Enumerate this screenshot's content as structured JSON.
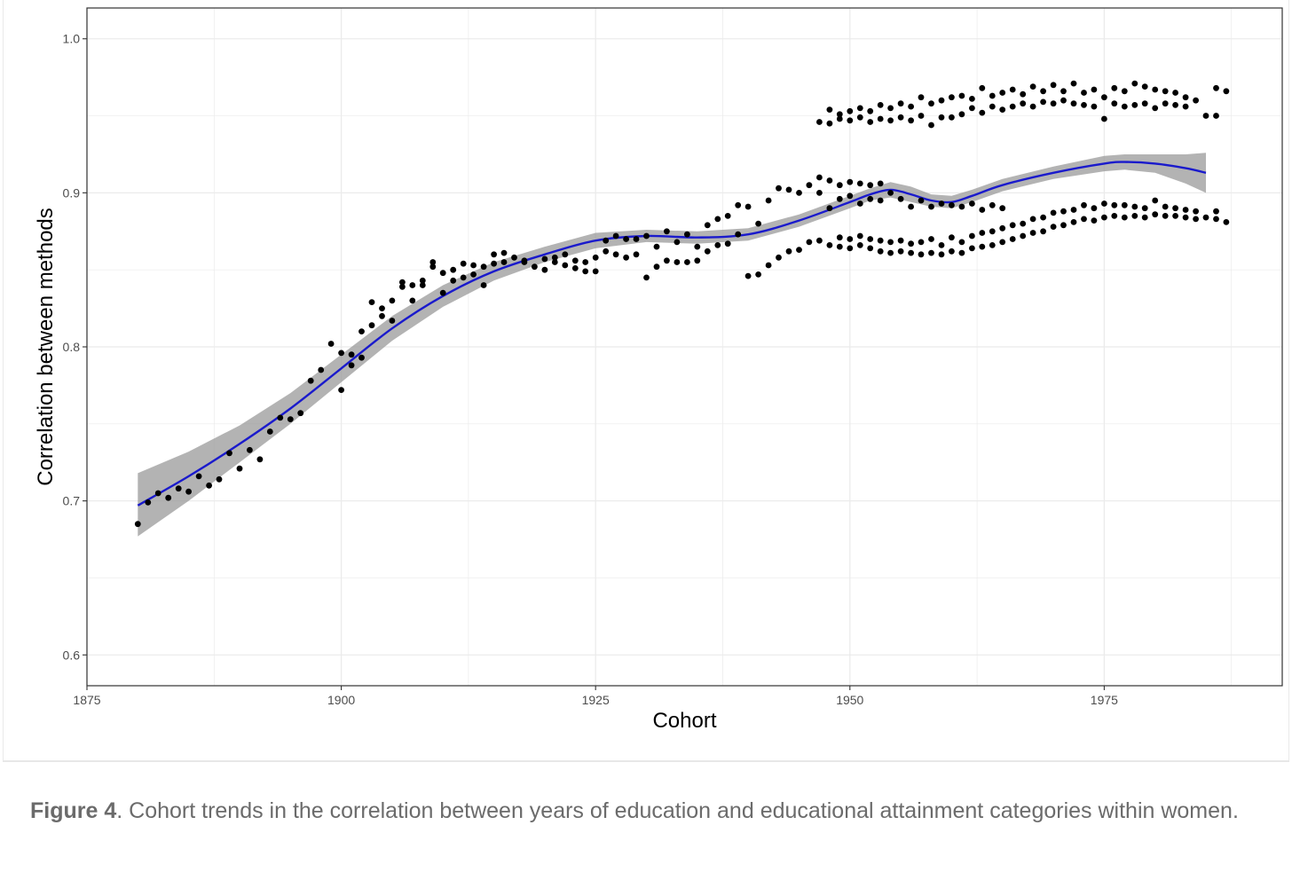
{
  "caption": {
    "figure_label": "Figure 4",
    "text": ". Cohort trends in the correlation between years of education and educational attainment categories within women."
  },
  "chart_data": {
    "type": "scatter",
    "xlabel": "Cohort",
    "ylabel": "Correlation between methods",
    "xlim": [
      1875,
      1992.5
    ],
    "ylim": [
      0.58,
      1.02
    ],
    "xticks": [
      1875,
      1900,
      1925,
      1950,
      1975
    ],
    "yticks": [
      0.6,
      0.7,
      0.8,
      0.9,
      1.0
    ],
    "xtick_labels": [
      "1875",
      "1900",
      "1925",
      "1950",
      "1975"
    ],
    "ytick_labels": [
      "0.6",
      "0.7",
      "0.8",
      "0.9",
      "1.0"
    ],
    "grid": true,
    "legend": "none",
    "colors": {
      "points": "#000000",
      "smooth_line": "#1a1acc",
      "confidence_band": "#999999",
      "grid": "#ebebeb",
      "panel_border": "#333333"
    },
    "points": [
      [
        1880,
        0.685
      ],
      [
        1881,
        0.699
      ],
      [
        1882,
        0.705
      ],
      [
        1883,
        0.702
      ],
      [
        1884,
        0.708
      ],
      [
        1885,
        0.706
      ],
      [
        1886,
        0.716
      ],
      [
        1887,
        0.71
      ],
      [
        1888,
        0.714
      ],
      [
        1889,
        0.731
      ],
      [
        1890,
        0.721
      ],
      [
        1891,
        0.733
      ],
      [
        1892,
        0.727
      ],
      [
        1893,
        0.745
      ],
      [
        1894,
        0.754
      ],
      [
        1895,
        0.753
      ],
      [
        1896,
        0.757
      ],
      [
        1897,
        0.778
      ],
      [
        1898,
        0.785
      ],
      [
        1899,
        0.802
      ],
      [
        1900,
        0.796
      ],
      [
        1900,
        0.772
      ],
      [
        1901,
        0.788
      ],
      [
        1901,
        0.795
      ],
      [
        1902,
        0.793
      ],
      [
        1902,
        0.81
      ],
      [
        1903,
        0.814
      ],
      [
        1903,
        0.829
      ],
      [
        1904,
        0.82
      ],
      [
        1904,
        0.825
      ],
      [
        1905,
        0.817
      ],
      [
        1905,
        0.83
      ],
      [
        1906,
        0.839
      ],
      [
        1906,
        0.842
      ],
      [
        1907,
        0.84
      ],
      [
        1907,
        0.83
      ],
      [
        1908,
        0.843
      ],
      [
        1908,
        0.84
      ],
      [
        1909,
        0.855
      ],
      [
        1909,
        0.852
      ],
      [
        1910,
        0.835
      ],
      [
        1910,
        0.848
      ],
      [
        1911,
        0.85
      ],
      [
        1911,
        0.843
      ],
      [
        1912,
        0.854
      ],
      [
        1912,
        0.845
      ],
      [
        1913,
        0.853
      ],
      [
        1913,
        0.847
      ],
      [
        1914,
        0.84
      ],
      [
        1914,
        0.852
      ],
      [
        1915,
        0.86
      ],
      [
        1915,
        0.854
      ],
      [
        1916,
        0.861
      ],
      [
        1916,
        0.855
      ],
      [
        1917,
        0.858
      ],
      [
        1918,
        0.855
      ],
      [
        1918,
        0.856
      ],
      [
        1919,
        0.852
      ],
      [
        1920,
        0.85
      ],
      [
        1920,
        0.857
      ],
      [
        1921,
        0.858
      ],
      [
        1921,
        0.855
      ],
      [
        1922,
        0.86
      ],
      [
        1922,
        0.853
      ],
      [
        1923,
        0.856
      ],
      [
        1923,
        0.851
      ],
      [
        1924,
        0.849
      ],
      [
        1924,
        0.855
      ],
      [
        1925,
        0.849
      ],
      [
        1925,
        0.858
      ],
      [
        1926,
        0.862
      ],
      [
        1926,
        0.869
      ],
      [
        1927,
        0.86
      ],
      [
        1927,
        0.872
      ],
      [
        1928,
        0.858
      ],
      [
        1928,
        0.87
      ],
      [
        1929,
        0.86
      ],
      [
        1929,
        0.87
      ],
      [
        1930,
        0.845
      ],
      [
        1930,
        0.872
      ],
      [
        1931,
        0.865
      ],
      [
        1931,
        0.852
      ],
      [
        1932,
        0.856
      ],
      [
        1932,
        0.875
      ],
      [
        1933,
        0.868
      ],
      [
        1933,
        0.855
      ],
      [
        1934,
        0.873
      ],
      [
        1934,
        0.855
      ],
      [
        1935,
        0.865
      ],
      [
        1935,
        0.856
      ],
      [
        1936,
        0.879
      ],
      [
        1936,
        0.862
      ],
      [
        1937,
        0.883
      ],
      [
        1937,
        0.866
      ],
      [
        1938,
        0.885
      ],
      [
        1938,
        0.867
      ],
      [
        1939,
        0.892
      ],
      [
        1939,
        0.873
      ],
      [
        1940,
        0.891
      ],
      [
        1940,
        0.846
      ],
      [
        1941,
        0.88
      ],
      [
        1941,
        0.847
      ],
      [
        1942,
        0.895
      ],
      [
        1942,
        0.853
      ],
      [
        1943,
        0.903
      ],
      [
        1943,
        0.858
      ],
      [
        1944,
        0.902
      ],
      [
        1944,
        0.862
      ],
      [
        1945,
        0.9
      ],
      [
        1945,
        0.863
      ],
      [
        1946,
        0.905
      ],
      [
        1946,
        0.868
      ],
      [
        1947,
        0.91
      ],
      [
        1947,
        0.9
      ],
      [
        1948,
        0.908
      ],
      [
        1948,
        0.89
      ],
      [
        1949,
        0.905
      ],
      [
        1949,
        0.896
      ],
      [
        1950,
        0.907
      ],
      [
        1950,
        0.898
      ],
      [
        1951,
        0.906
      ],
      [
        1951,
        0.893
      ],
      [
        1952,
        0.905
      ],
      [
        1952,
        0.896
      ],
      [
        1953,
        0.906
      ],
      [
        1953,
        0.895
      ],
      [
        1954,
        0.9
      ],
      [
        1955,
        0.896
      ],
      [
        1956,
        0.891
      ],
      [
        1957,
        0.895
      ],
      [
        1958,
        0.891
      ],
      [
        1959,
        0.893
      ],
      [
        1960,
        0.892
      ],
      [
        1961,
        0.891
      ],
      [
        1962,
        0.893
      ],
      [
        1963,
        0.889
      ],
      [
        1964,
        0.892
      ],
      [
        1965,
        0.89
      ],
      [
        1947,
        0.946
      ],
      [
        1948,
        0.945
      ],
      [
        1948,
        0.954
      ],
      [
        1949,
        0.948
      ],
      [
        1949,
        0.951
      ],
      [
        1950,
        0.947
      ],
      [
        1950,
        0.953
      ],
      [
        1951,
        0.949
      ],
      [
        1951,
        0.955
      ],
      [
        1952,
        0.946
      ],
      [
        1952,
        0.953
      ],
      [
        1953,
        0.948
      ],
      [
        1953,
        0.957
      ],
      [
        1954,
        0.947
      ],
      [
        1954,
        0.955
      ],
      [
        1955,
        0.949
      ],
      [
        1955,
        0.958
      ],
      [
        1956,
        0.947
      ],
      [
        1956,
        0.956
      ],
      [
        1957,
        0.95
      ],
      [
        1957,
        0.962
      ],
      [
        1958,
        0.944
      ],
      [
        1958,
        0.958
      ],
      [
        1959,
        0.949
      ],
      [
        1959,
        0.96
      ],
      [
        1960,
        0.949
      ],
      [
        1960,
        0.962
      ],
      [
        1961,
        0.951
      ],
      [
        1961,
        0.963
      ],
      [
        1962,
        0.955
      ],
      [
        1962,
        0.961
      ],
      [
        1963,
        0.952
      ],
      [
        1963,
        0.968
      ],
      [
        1964,
        0.956
      ],
      [
        1964,
        0.963
      ],
      [
        1965,
        0.954
      ],
      [
        1965,
        0.965
      ],
      [
        1966,
        0.956
      ],
      [
        1966,
        0.967
      ],
      [
        1967,
        0.958
      ],
      [
        1967,
        0.964
      ],
      [
        1968,
        0.956
      ],
      [
        1968,
        0.969
      ],
      [
        1969,
        0.959
      ],
      [
        1969,
        0.966
      ],
      [
        1970,
        0.958
      ],
      [
        1970,
        0.97
      ],
      [
        1971,
        0.96
      ],
      [
        1971,
        0.966
      ],
      [
        1972,
        0.958
      ],
      [
        1972,
        0.971
      ],
      [
        1973,
        0.957
      ],
      [
        1973,
        0.965
      ],
      [
        1974,
        0.956
      ],
      [
        1974,
        0.967
      ],
      [
        1975,
        0.948
      ],
      [
        1975,
        0.962
      ],
      [
        1976,
        0.958
      ],
      [
        1976,
        0.968
      ],
      [
        1977,
        0.956
      ],
      [
        1977,
        0.966
      ],
      [
        1978,
        0.957
      ],
      [
        1978,
        0.971
      ],
      [
        1979,
        0.958
      ],
      [
        1979,
        0.969
      ],
      [
        1980,
        0.955
      ],
      [
        1980,
        0.967
      ],
      [
        1981,
        0.958
      ],
      [
        1981,
        0.966
      ],
      [
        1982,
        0.957
      ],
      [
        1982,
        0.965
      ],
      [
        1983,
        0.956
      ],
      [
        1983,
        0.962
      ],
      [
        1984,
        0.96
      ],
      [
        1985,
        0.95
      ],
      [
        1986,
        0.95
      ],
      [
        1986,
        0.968
      ],
      [
        1987,
        0.966
      ],
      [
        1947,
        0.869
      ],
      [
        1948,
        0.866
      ],
      [
        1949,
        0.865
      ],
      [
        1949,
        0.871
      ],
      [
        1950,
        0.864
      ],
      [
        1950,
        0.87
      ],
      [
        1951,
        0.866
      ],
      [
        1951,
        0.872
      ],
      [
        1952,
        0.864
      ],
      [
        1952,
        0.87
      ],
      [
        1953,
        0.862
      ],
      [
        1953,
        0.869
      ],
      [
        1954,
        0.861
      ],
      [
        1954,
        0.868
      ],
      [
        1955,
        0.862
      ],
      [
        1955,
        0.869
      ],
      [
        1956,
        0.861
      ],
      [
        1956,
        0.867
      ],
      [
        1957,
        0.86
      ],
      [
        1957,
        0.868
      ],
      [
        1958,
        0.861
      ],
      [
        1958,
        0.87
      ],
      [
        1959,
        0.86
      ],
      [
        1959,
        0.866
      ],
      [
        1960,
        0.862
      ],
      [
        1960,
        0.871
      ],
      [
        1961,
        0.861
      ],
      [
        1961,
        0.868
      ],
      [
        1962,
        0.864
      ],
      [
        1962,
        0.872
      ],
      [
        1963,
        0.865
      ],
      [
        1963,
        0.874
      ],
      [
        1964,
        0.866
      ],
      [
        1964,
        0.875
      ],
      [
        1965,
        0.868
      ],
      [
        1965,
        0.877
      ],
      [
        1966,
        0.87
      ],
      [
        1966,
        0.879
      ],
      [
        1967,
        0.872
      ],
      [
        1967,
        0.88
      ],
      [
        1968,
        0.874
      ],
      [
        1968,
        0.883
      ],
      [
        1969,
        0.875
      ],
      [
        1969,
        0.884
      ],
      [
        1970,
        0.878
      ],
      [
        1970,
        0.887
      ],
      [
        1971,
        0.879
      ],
      [
        1971,
        0.888
      ],
      [
        1972,
        0.881
      ],
      [
        1972,
        0.889
      ],
      [
        1973,
        0.883
      ],
      [
        1973,
        0.892
      ],
      [
        1974,
        0.882
      ],
      [
        1974,
        0.89
      ],
      [
        1975,
        0.884
      ],
      [
        1975,
        0.893
      ],
      [
        1976,
        0.885
      ],
      [
        1976,
        0.892
      ],
      [
        1977,
        0.884
      ],
      [
        1977,
        0.892
      ],
      [
        1978,
        0.885
      ],
      [
        1978,
        0.891
      ],
      [
        1979,
        0.884
      ],
      [
        1979,
        0.89
      ],
      [
        1980,
        0.886
      ],
      [
        1980,
        0.895
      ],
      [
        1981,
        0.885
      ],
      [
        1981,
        0.891
      ],
      [
        1982,
        0.885
      ],
      [
        1982,
        0.89
      ],
      [
        1983,
        0.884
      ],
      [
        1983,
        0.889
      ],
      [
        1984,
        0.883
      ],
      [
        1984,
        0.888
      ],
      [
        1985,
        0.884
      ],
      [
        1986,
        0.883
      ],
      [
        1986,
        0.888
      ],
      [
        1987,
        0.881
      ]
    ],
    "smooth": {
      "x": [
        1880,
        1885,
        1890,
        1895,
        1900,
        1905,
        1910,
        1915,
        1920,
        1925,
        1930,
        1935,
        1940,
        1945,
        1950,
        1952,
        1954,
        1956,
        1958,
        1960,
        1962,
        1965,
        1970,
        1975,
        1977,
        1980,
        1983,
        1985
      ],
      "y": [
        0.697,
        0.716,
        0.737,
        0.76,
        0.786,
        0.812,
        0.833,
        0.849,
        0.86,
        0.869,
        0.872,
        0.871,
        0.873,
        0.882,
        0.894,
        0.899,
        0.902,
        0.899,
        0.895,
        0.894,
        0.898,
        0.905,
        0.913,
        0.919,
        0.92,
        0.919,
        0.916,
        0.913
      ],
      "lower": [
        0.677,
        0.7,
        0.725,
        0.75,
        0.777,
        0.804,
        0.826,
        0.843,
        0.855,
        0.864,
        0.868,
        0.867,
        0.869,
        0.878,
        0.89,
        0.895,
        0.897,
        0.894,
        0.891,
        0.89,
        0.894,
        0.901,
        0.909,
        0.914,
        0.915,
        0.913,
        0.906,
        0.9
      ],
      "upper": [
        0.718,
        0.732,
        0.749,
        0.77,
        0.795,
        0.82,
        0.84,
        0.855,
        0.865,
        0.874,
        0.876,
        0.875,
        0.877,
        0.886,
        0.898,
        0.903,
        0.907,
        0.904,
        0.899,
        0.898,
        0.902,
        0.909,
        0.917,
        0.924,
        0.925,
        0.925,
        0.925,
        0.926
      ]
    }
  }
}
